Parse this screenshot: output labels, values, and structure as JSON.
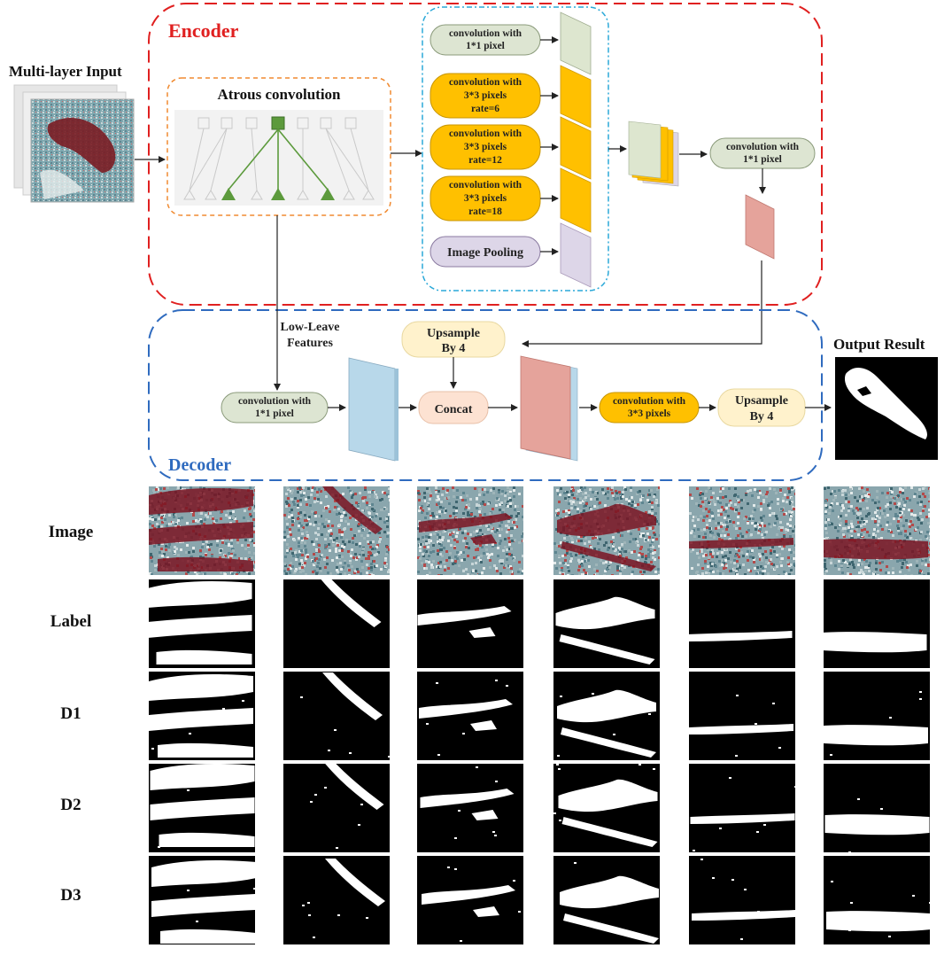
{
  "encoder": {
    "title": "Encoder",
    "input_label": "Multi-layer Input",
    "atrous_label": "Atrous convolution",
    "aspp": [
      {
        "line1": "convolution with",
        "line2": "1*1 pixel",
        "line3": ""
      },
      {
        "line1": "convolution with",
        "line2": "3*3 pixels",
        "line3": "rate=6"
      },
      {
        "line1": "convolution with",
        "line2": "3*3 pixels",
        "line3": "rate=12"
      },
      {
        "line1": "convolution with",
        "line2": "3*3 pixels",
        "line3": "rate=18"
      }
    ],
    "image_pooling": "Image Pooling",
    "post_conv_line1": "convolution with",
    "post_conv_line2": "1*1 pixel"
  },
  "decoder": {
    "title": "Decoder",
    "low_level_line1": "Low-Leave",
    "low_level_line2": "Features",
    "conv1_line1": "convolution with",
    "conv1_line2": "1*1 pixel",
    "upsample_top_line1": "Upsample",
    "upsample_top_line2": "By 4",
    "concat": "Concat",
    "conv3_line1": "convolution with",
    "conv3_line2": "3*3 pixels",
    "upsample_right_line1": "Upsample",
    "upsample_right_line2": "By 4",
    "output_label": "Output Result"
  },
  "results": {
    "rows": [
      {
        "label": "Image"
      },
      {
        "label": "Label"
      },
      {
        "label": "D1"
      },
      {
        "label": "D2"
      },
      {
        "label": "D3"
      }
    ],
    "column_count": 6
  },
  "colors": {
    "encoder_border": "#e02020",
    "decoder_border": "#2f6bbf",
    "aspp_border": "#2aa8d8",
    "atrous_border": "#f08a30",
    "green_box": "#dde5d2",
    "orange_box": "#ffc000",
    "purple_box": "#ddd6e8",
    "feature_green": "#dde6cf",
    "feature_blue": "#b8d8ea",
    "feature_red": "#e5a39b",
    "cream_box": "#fff2cc",
    "peach_box": "#fde2d2"
  }
}
